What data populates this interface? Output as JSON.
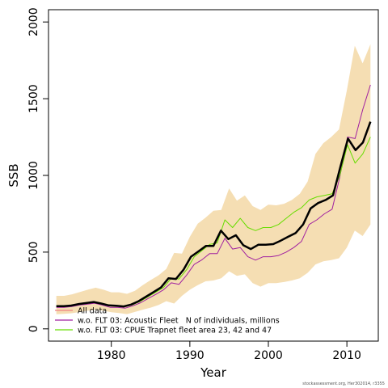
{
  "chart_data": {
    "type": "line",
    "xlabel": "Year",
    "ylabel": "SSB",
    "xlim": [
      1972,
      2014
    ],
    "ylim": [
      -80,
      2080
    ],
    "x_ticks": [
      1980,
      1990,
      2000,
      2010
    ],
    "y_ticks": [
      0,
      500,
      1000,
      1500,
      2000
    ],
    "grid": false,
    "legend_position": "bottom-left",
    "band": {
      "color": "#f5deb3",
      "x": [
        1973,
        1974,
        1975,
        1976,
        1977,
        1978,
        1979,
        1980,
        1981,
        1982,
        1983,
        1984,
        1985,
        1986,
        1987,
        1988,
        1989,
        1990,
        1991,
        1992,
        1993,
        1994,
        1995,
        1996,
        1997,
        1998,
        1999,
        2000,
        2001,
        2002,
        2003,
        2004,
        2005,
        2006,
        2007,
        2008,
        2009,
        2010,
        2011,
        2012,
        2013
      ],
      "upper": [
        215,
        215,
        225,
        240,
        255,
        268,
        255,
        238,
        238,
        228,
        248,
        285,
        318,
        348,
        390,
        495,
        490,
        600,
        685,
        725,
        770,
        775,
        915,
        835,
        870,
        800,
        775,
        810,
        805,
        815,
        840,
        880,
        960,
        1140,
        1210,
        1250,
        1300,
        1555,
        1845,
        1730,
        1855
      ],
      "lower": [
        95,
        98,
        102,
        110,
        118,
        124,
        118,
        108,
        103,
        96,
        110,
        125,
        138,
        155,
        180,
        165,
        215,
        255,
        285,
        310,
        315,
        330,
        375,
        345,
        355,
        298,
        275,
        298,
        298,
        305,
        315,
        330,
        365,
        420,
        440,
        448,
        460,
        530,
        640,
        605,
        680
      ]
    },
    "series": [
      {
        "name": "All data",
        "color": "#000000",
        "width": 2.5,
        "values": [
          148,
          148,
          152,
          162,
          168,
          175,
          165,
          153,
          151,
          146,
          158,
          180,
          210,
          240,
          270,
          330,
          325,
          385,
          470,
          505,
          540,
          540,
          640,
          585,
          610,
          545,
          520,
          548,
          548,
          552,
          575,
          600,
          625,
          680,
          785,
          820,
          840,
          870,
          1060,
          1240,
          1165,
          1215,
          1350
        ]
      },
      {
        "name": "w.o. FLT 03: Acoustic Fleet   N of individuals, millions",
        "color": "#a020a0",
        "width": 1,
        "values": [
          140,
          140,
          145,
          155,
          160,
          167,
          155,
          140,
          140,
          135,
          150,
          170,
          198,
          225,
          255,
          300,
          290,
          350,
          420,
          450,
          490,
          490,
          590,
          520,
          530,
          470,
          448,
          470,
          470,
          478,
          500,
          530,
          570,
          680,
          710,
          750,
          780,
          990,
          1250,
          1240,
          1430,
          1590
        ]
      },
      {
        "name": "w.o. FLT 03: CPUE Trapnet fleet area 23, 42 and 47",
        "color": "#66dd00",
        "width": 1,
        "values": [
          148,
          148,
          152,
          162,
          168,
          175,
          165,
          153,
          151,
          146,
          158,
          180,
          210,
          240,
          270,
          330,
          325,
          385,
          470,
          510,
          550,
          560,
          710,
          660,
          720,
          660,
          640,
          660,
          660,
          680,
          720,
          760,
          790,
          840,
          860,
          870,
          880,
          1000,
          1200,
          1080,
          1140,
          1250
        ]
      }
    ],
    "legend_extra_all_data_color": "#f08080"
  },
  "credit": "stockassessment.org, Her302014, r3355"
}
